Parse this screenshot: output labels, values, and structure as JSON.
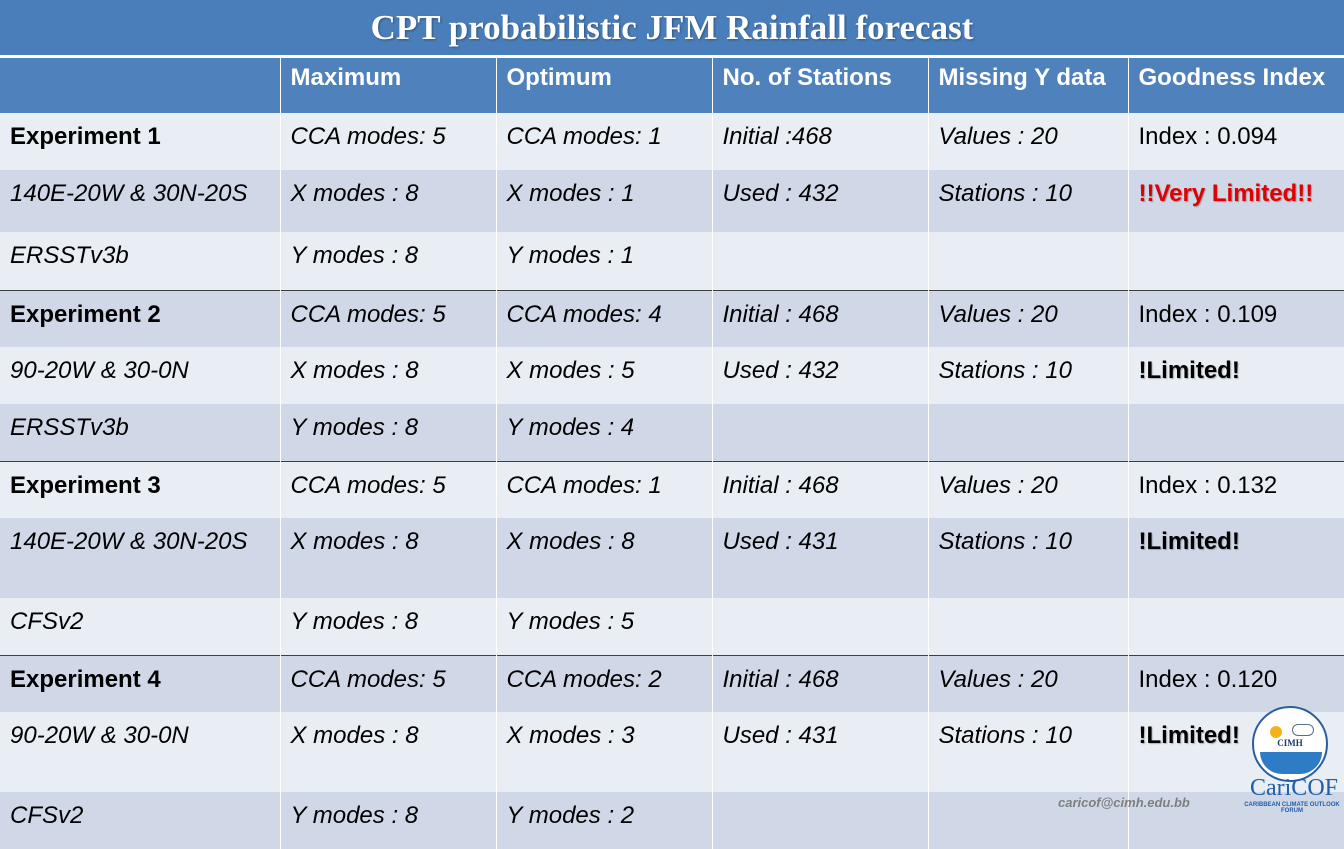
{
  "title": "CPT probabilistic JFM Rainfall forecast",
  "headers": [
    "",
    "Maximum",
    "Optimum",
    "No. of Stations",
    "Missing Y data",
    "Goodness Index"
  ],
  "rows": [
    {
      "c": [
        "Experiment 1",
        "CCA modes: 5",
        "CCA modes: 1",
        "Initial :468",
        "Values : 20",
        "Index : 0.094"
      ]
    },
    {
      "c": [
        "140E-20W & 30N-20S",
        "X modes : 8",
        "X modes : 1",
        "Used : 432",
        "Stations : 10",
        "!!Very Limited!!"
      ]
    },
    {
      "c": [
        "ERSSTv3b",
        "Y modes : 8",
        "Y modes : 1",
        "",
        "",
        ""
      ]
    },
    {
      "c": [
        "Experiment 2",
        "CCA modes: 5",
        "CCA modes: 4",
        "Initial : 468",
        "Values : 20",
        "Index : 0.109"
      ]
    },
    {
      "c": [
        "90-20W & 30-0N",
        "X modes : 8",
        "X modes : 5",
        "Used : 432",
        "Stations : 10",
        "!Limited!"
      ]
    },
    {
      "c": [
        "ERSSTv3b",
        "Y modes : 8",
        "Y modes : 4",
        "",
        "",
        ""
      ]
    },
    {
      "c": [
        "Experiment 3",
        "CCA modes: 5",
        "CCA modes: 1",
        "Initial : 468",
        "Values : 20",
        "Index : 0.132"
      ]
    },
    {
      "c": [
        "140E-20W & 30N-20S",
        "X modes : 8",
        "X modes : 8",
        "Used : 431",
        "Stations : 10",
        "!Limited!"
      ]
    },
    {
      "c": [
        "CFSv2",
        "Y modes : 8",
        "Y modes : 5",
        "",
        "",
        ""
      ]
    },
    {
      "c": [
        "Experiment 4",
        "CCA modes: 5",
        "CCA modes: 2",
        "Initial : 468",
        "Values : 20",
        "Index : 0.120"
      ]
    },
    {
      "c": [
        "90-20W & 30-0N",
        "X modes : 8",
        "X modes : 3",
        "Used : 431",
        "Stations : 10",
        "!Limited!"
      ]
    },
    {
      "c": [
        "CFSv2",
        "Y modes : 8",
        "Y modes : 2",
        "",
        "",
        ""
      ]
    }
  ],
  "logo": {
    "letters": "CIMH",
    "brand": "CariCOF",
    "sub": "CARIBBEAN CLIMATE OUTLOOK FORUM"
  },
  "email": "caricof@cimh.edu.bb"
}
